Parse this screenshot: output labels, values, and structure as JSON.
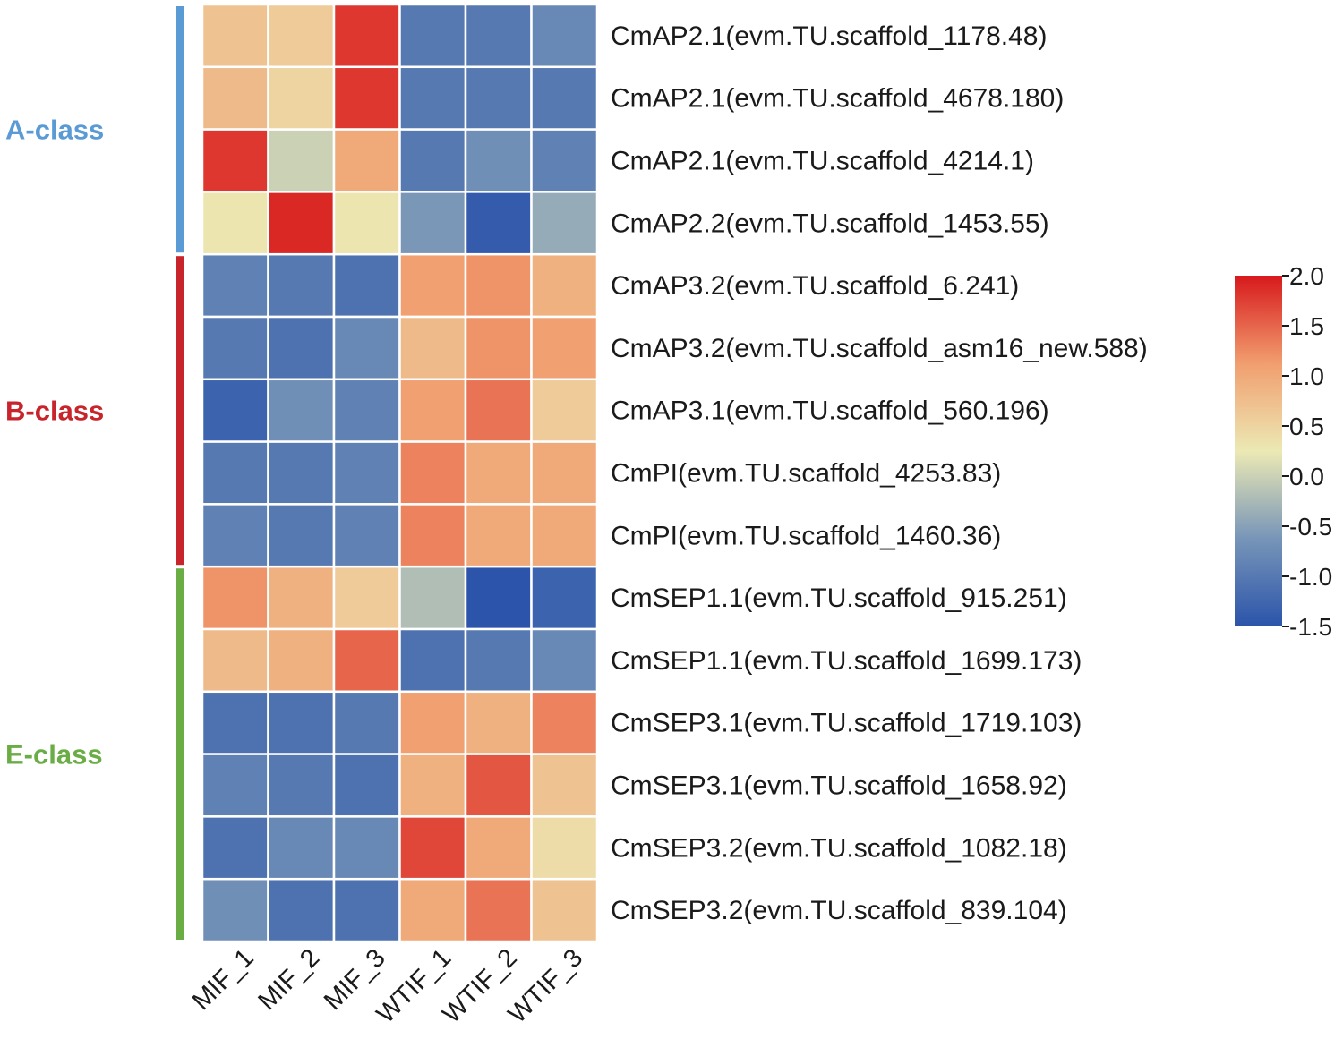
{
  "chart_data": {
    "type": "heatmap",
    "columns": [
      "MIF_1",
      "MIF_2",
      "MIF_3",
      "WTIF_1",
      "WTIF_2",
      "WTIF_3"
    ],
    "rows": [
      "CmAP2.1(evm.TU.scaffold_1178.48)",
      "CmAP2.1(evm.TU.scaffold_4678.180)",
      "CmAP2.1(evm.TU.scaffold_4214.1)",
      "CmAP2.2(evm.TU.scaffold_1453.55)",
      "CmAP3.2(evm.TU.scaffold_6.241)",
      "CmAP3.2(evm.TU.scaffold_asm16_new.588)",
      "CmAP3.1(evm.TU.scaffold_560.196)",
      "CmPI(evm.TU.scaffold_4253.83)",
      "CmPI(evm.TU.scaffold_1460.36)",
      "CmSEP1.1(evm.TU.scaffold_915.251)",
      "CmSEP1.1(evm.TU.scaffold_1699.173)",
      "CmSEP3.1(evm.TU.scaffold_1719.103)",
      "CmSEP3.1(evm.TU.scaffold_1658.92)",
      "CmSEP3.2(evm.TU.scaffold_1082.18)",
      "CmSEP3.2(evm.TU.scaffold_839.104)"
    ],
    "values": [
      [
        0.7,
        0.6,
        1.8,
        -1.0,
        -1.0,
        -0.8
      ],
      [
        0.8,
        0.5,
        1.8,
        -1.0,
        -1.0,
        -1.0
      ],
      [
        1.8,
        0.0,
        1.0,
        -1.0,
        -0.7,
        -0.9
      ],
      [
        0.3,
        1.9,
        0.3,
        -0.6,
        -1.4,
        -0.4
      ],
      [
        -0.9,
        -1.0,
        -1.1,
        1.1,
        1.2,
        0.9
      ],
      [
        -1.0,
        -1.1,
        -0.8,
        0.8,
        1.2,
        1.1
      ],
      [
        -1.3,
        -0.7,
        -0.9,
        1.1,
        1.4,
        0.6
      ],
      [
        -1.0,
        -1.0,
        -0.9,
        1.3,
        1.0,
        1.0
      ],
      [
        -0.9,
        -1.0,
        -0.9,
        1.3,
        1.0,
        1.0
      ],
      [
        1.2,
        0.9,
        0.6,
        -0.2,
        -1.5,
        -1.3
      ],
      [
        0.8,
        0.9,
        1.5,
        -1.1,
        -1.0,
        -0.8
      ],
      [
        -1.1,
        -1.1,
        -1.0,
        1.1,
        0.9,
        1.3
      ],
      [
        -0.9,
        -1.0,
        -1.1,
        0.9,
        1.6,
        0.7
      ],
      [
        -1.1,
        -0.8,
        -0.8,
        1.7,
        1.0,
        0.4
      ],
      [
        -0.7,
        -1.1,
        -1.1,
        1.0,
        1.4,
        0.7
      ]
    ],
    "groups": [
      {
        "label": "A-class",
        "start": 0,
        "end": 3,
        "color": "#5b9bd5"
      },
      {
        "label": "B-class",
        "start": 4,
        "end": 8,
        "color": "#c8242b"
      },
      {
        "label": "E-class",
        "start": 9,
        "end": 14,
        "color": "#6aad45"
      }
    ],
    "colorbar": {
      "ticks": [
        "2.0",
        "1.5",
        "1.0",
        "0.5",
        "0.0",
        "-0.5",
        "-1.0",
        "-1.5"
      ],
      "range": [
        -1.5,
        2.0
      ],
      "colors": {
        "high": "#d7191c",
        "mid_high": "#f19e6f",
        "mid": "#ece9b4",
        "mid_low": "#7795b8",
        "low": "#2b54aa"
      }
    }
  }
}
